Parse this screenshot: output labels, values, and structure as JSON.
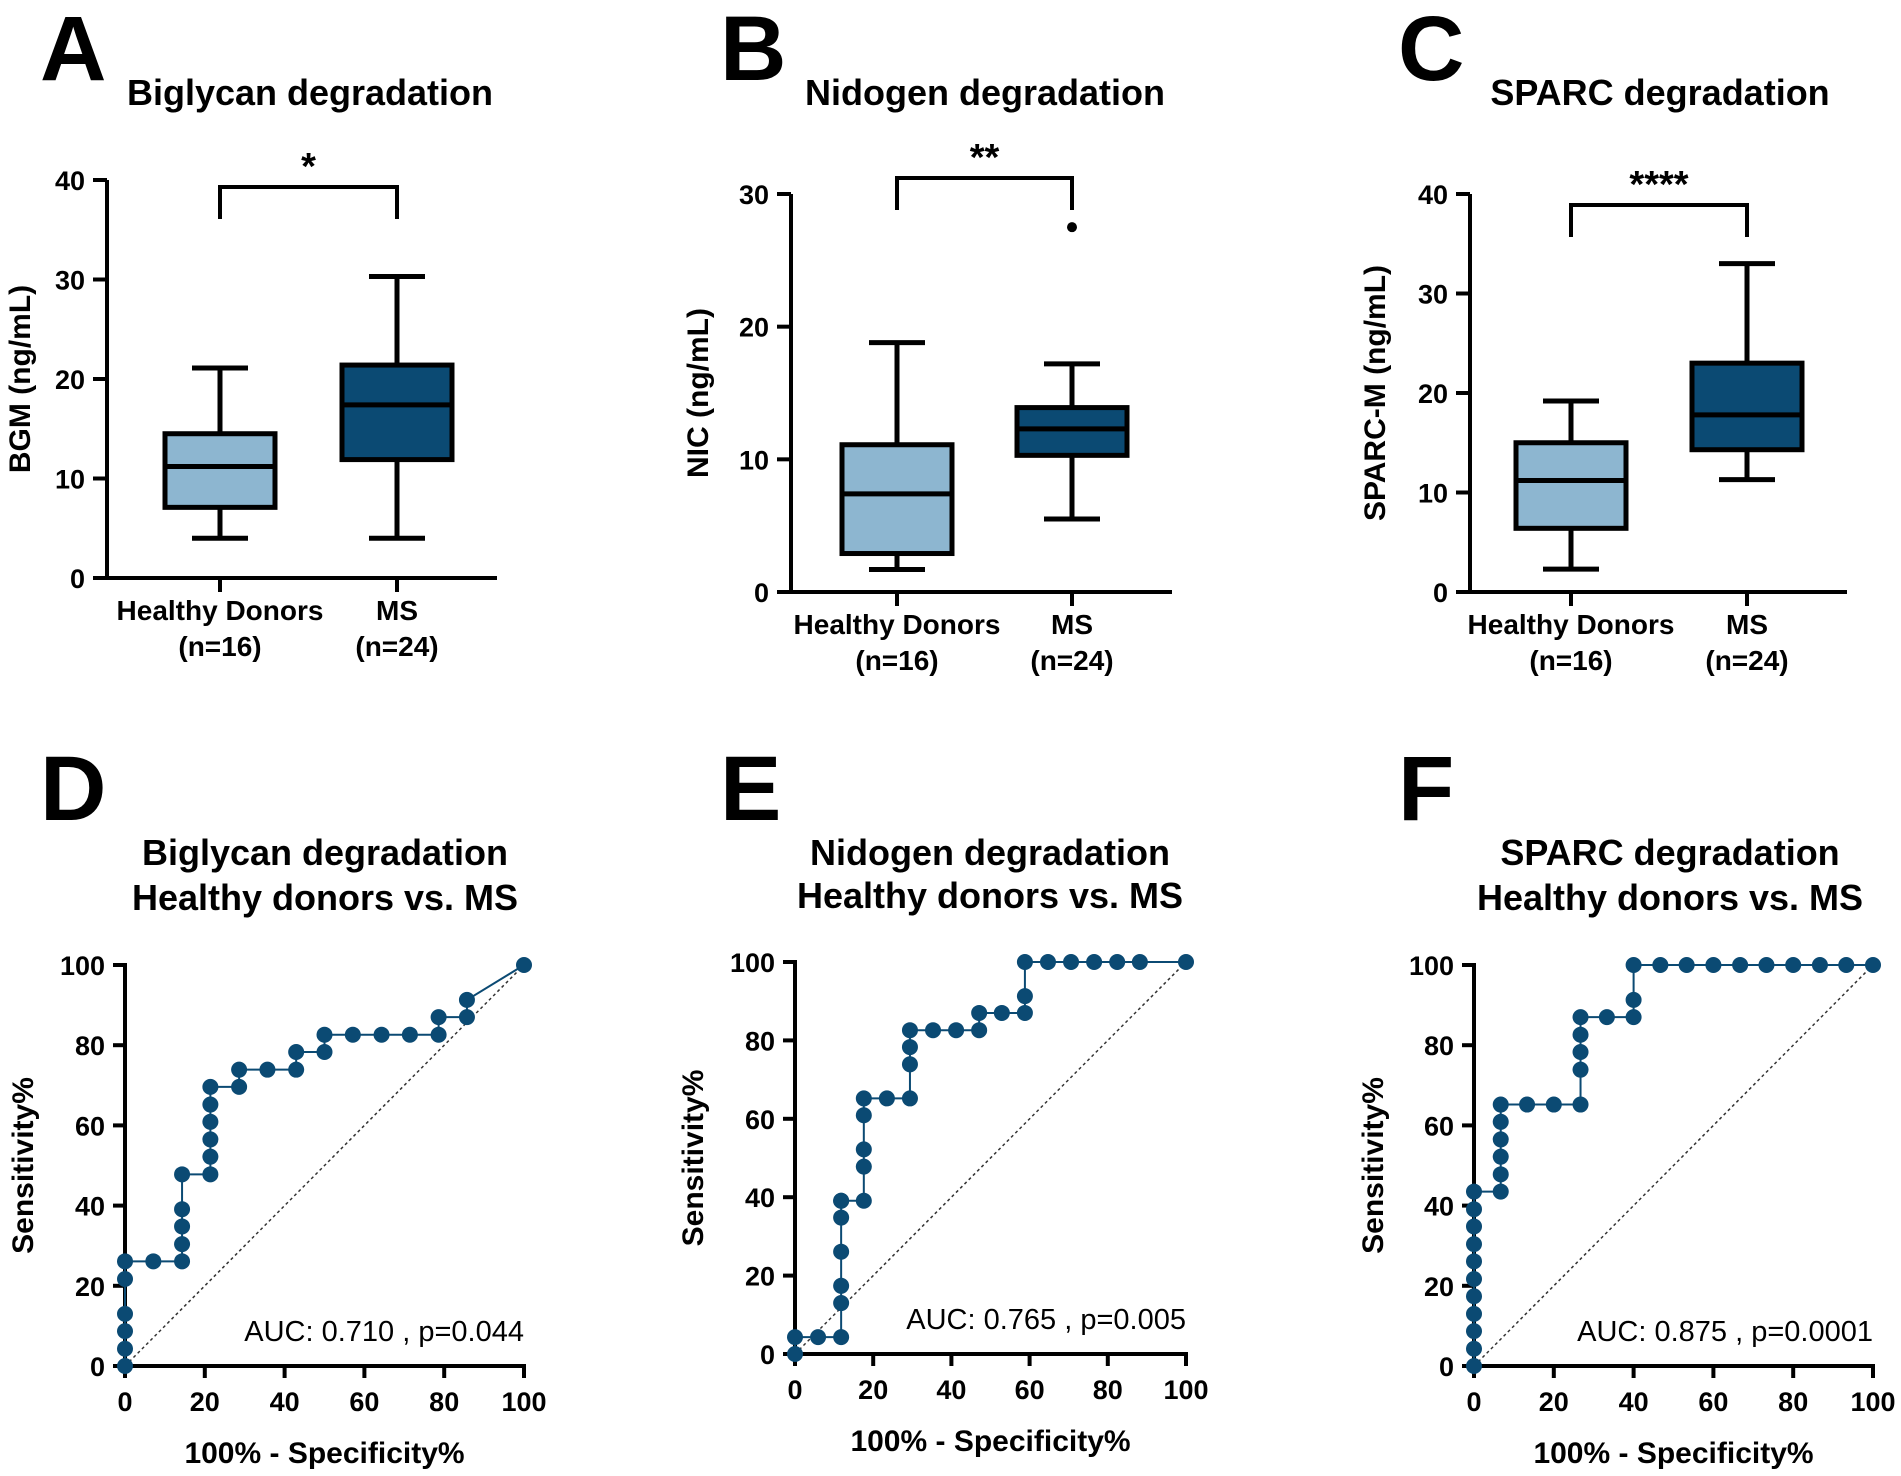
{
  "colors": {
    "healthy": "#8db6d0",
    "ms": "#0b4a73",
    "roc": "#0b4a73",
    "axis": "#000000"
  },
  "chart_data": [
    {
      "type": "box",
      "letter": "A",
      "title": "Biglycan degradation",
      "ylabel": "BGM (ng/mL)",
      "ylim": [
        0,
        40
      ],
      "yticks": [
        0,
        10,
        20,
        30,
        40
      ],
      "significance": "*",
      "groups": [
        {
          "label": "Healthy Donors",
          "n": "(n=16)",
          "min": 4.0,
          "q1": 7.1,
          "median": 11.2,
          "q3": 14.5,
          "max": 21.1,
          "outliers": []
        },
        {
          "label": "MS",
          "n": "(n=24)",
          "min": 4.0,
          "q1": 11.9,
          "median": 17.4,
          "q3": 21.4,
          "max": 30.3,
          "outliers": []
        }
      ]
    },
    {
      "type": "box",
      "letter": "B",
      "title": "Nidogen degradation",
      "ylabel": "NIC (ng/mL)",
      "ylim": [
        0,
        30
      ],
      "yticks": [
        0,
        10,
        20,
        30
      ],
      "significance": "**",
      "groups": [
        {
          "label": "Healthy Donors",
          "n": "(n=16)",
          "min": 1.7,
          "q1": 2.9,
          "median": 7.4,
          "q3": 11.1,
          "max": 18.8,
          "outliers": []
        },
        {
          "label": "MS",
          "n": "(n=24)",
          "min": 5.5,
          "q1": 10.3,
          "median": 12.3,
          "q3": 13.9,
          "max": 17.2,
          "outliers": [
            27.5
          ]
        }
      ]
    },
    {
      "type": "box",
      "letter": "C",
      "title": "SPARC degradation",
      "ylabel": "SPARC-M (ng/mL)",
      "ylim": [
        0,
        40
      ],
      "yticks": [
        0,
        10,
        20,
        30,
        40
      ],
      "significance": "****",
      "groups": [
        {
          "label": "Healthy Donors",
          "n": "(n=16)",
          "min": 2.3,
          "q1": 6.4,
          "median": 11.2,
          "q3": 15.0,
          "max": 19.2,
          "outliers": []
        },
        {
          "label": "MS",
          "n": "(n=24)",
          "min": 11.3,
          "q1": 14.3,
          "median": 17.8,
          "q3": 23.0,
          "max": 33.0,
          "outliers": []
        }
      ]
    },
    {
      "type": "line",
      "subtype": "roc",
      "letter": "D",
      "title": [
        "Biglycan degradation",
        "Healthy donors vs. MS"
      ],
      "xlabel": "100% - Specificity%",
      "ylabel": "Sensitivity%",
      "xlim": [
        0,
        100
      ],
      "ylim": [
        0,
        100
      ],
      "xticks": [
        0,
        20,
        40,
        60,
        80,
        100
      ],
      "yticks": [
        0,
        20,
        40,
        60,
        80,
        100
      ],
      "auc_text": "AUC: 0.710 , p=0.044",
      "x": [
        0,
        0,
        0,
        0,
        0,
        0,
        7.1,
        14.3,
        14.3,
        14.3,
        14.3,
        14.3,
        21.4,
        21.4,
        21.4,
        21.4,
        21.4,
        21.4,
        28.6,
        28.6,
        35.7,
        42.9,
        42.9,
        50,
        50,
        57.1,
        64.3,
        71.4,
        78.6,
        78.6,
        85.7,
        85.7,
        100
      ],
      "y": [
        0,
        4.3,
        8.7,
        13,
        21.7,
        26.1,
        26.1,
        26.1,
        30.4,
        34.8,
        39.1,
        47.8,
        47.8,
        52.2,
        56.5,
        60.9,
        65.2,
        69.6,
        69.6,
        73.9,
        73.9,
        73.9,
        78.3,
        78.3,
        82.6,
        82.6,
        82.6,
        82.6,
        82.6,
        87,
        87,
        91.3,
        100
      ]
    },
    {
      "type": "line",
      "subtype": "roc",
      "letter": "E",
      "title": [
        "Nidogen degradation",
        "Healthy donors vs. MS"
      ],
      "xlabel": "100% - Specificity%",
      "ylabel": "Sensitivity%",
      "xlim": [
        0,
        100
      ],
      "ylim": [
        0,
        100
      ],
      "xticks": [
        0,
        20,
        40,
        60,
        80,
        100
      ],
      "yticks": [
        0,
        20,
        40,
        60,
        80,
        100
      ],
      "auc_text": "AUC: 0.765 , p=0.005",
      "x": [
        0,
        0,
        5.9,
        11.8,
        11.8,
        11.8,
        11.8,
        11.8,
        11.8,
        11.8,
        17.6,
        17.6,
        17.6,
        17.6,
        17.6,
        23.5,
        29.4,
        29.4,
        29.4,
        29.4,
        35.3,
        41.2,
        47.1,
        47.1,
        52.9,
        58.8,
        58.8,
        58.8,
        64.7,
        70.6,
        76.5,
        82.4,
        88.2,
        100
      ],
      "y": [
        0,
        4.3,
        4.3,
        4.3,
        13,
        17.4,
        26.1,
        34.8,
        39.1,
        39.1,
        39.1,
        47.8,
        52.2,
        60.9,
        65.2,
        65.2,
        65.2,
        73.9,
        78.3,
        82.6,
        82.6,
        82.6,
        82.6,
        87,
        87,
        87,
        91.3,
        100,
        100,
        100,
        100,
        100,
        100,
        100
      ]
    },
    {
      "type": "line",
      "subtype": "roc",
      "letter": "F",
      "title": [
        "SPARC degradation",
        "Healthy donors vs. MS"
      ],
      "xlabel": "100% - Specificity%",
      "ylabel": "Sensitivity%",
      "xlim": [
        0,
        100
      ],
      "ylim": [
        0,
        100
      ],
      "xticks": [
        0,
        20,
        40,
        60,
        80,
        100
      ],
      "yticks": [
        0,
        20,
        40,
        60,
        80,
        100
      ],
      "auc_text": "AUC: 0.875 , p=0.0001",
      "x": [
        0,
        0,
        0,
        0,
        0,
        0,
        0,
        0,
        0,
        0,
        0,
        6.7,
        6.7,
        6.7,
        6.7,
        6.7,
        6.7,
        13.3,
        20,
        26.7,
        26.7,
        26.7,
        26.7,
        26.7,
        33.3,
        40,
        40,
        40,
        46.7,
        53.3,
        60,
        66.7,
        73.3,
        80,
        86.7,
        93.3,
        100
      ],
      "y": [
        0,
        4.3,
        8.7,
        13,
        17.4,
        21.7,
        26.1,
        30.4,
        34.8,
        39.1,
        43.5,
        43.5,
        47.8,
        52.2,
        56.5,
        60.9,
        65.2,
        65.2,
        65.2,
        65.2,
        73.9,
        78.3,
        82.6,
        87,
        87,
        87,
        91.3,
        100,
        100,
        100,
        100,
        100,
        100,
        100,
        100,
        100,
        100
      ]
    }
  ]
}
